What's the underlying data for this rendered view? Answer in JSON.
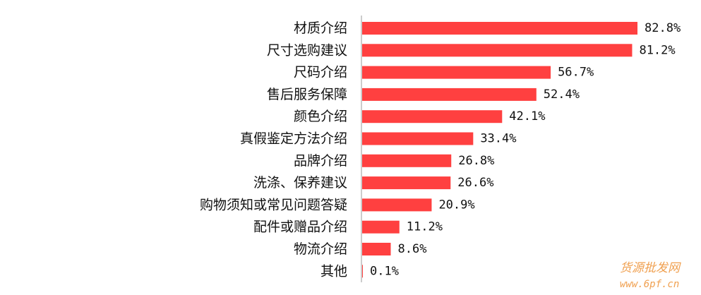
{
  "chart_data": {
    "type": "bar",
    "orientation": "horizontal",
    "categories": [
      "材质介绍",
      "尺寸选购建议",
      "尺码介绍",
      "售后服务保障",
      "颜色介绍",
      "真假鉴定方法介绍",
      "品牌介绍",
      "洗涤、保养建议",
      "购物须知或常见问题答疑",
      "配件或赠品介绍",
      "物流介绍",
      "其他"
    ],
    "values": [
      82.8,
      81.2,
      56.7,
      52.4,
      42.1,
      33.4,
      26.8,
      26.6,
      20.9,
      11.2,
      8.6,
      0.1
    ],
    "value_labels": [
      "82.8%",
      "81.2%",
      "56.7%",
      "52.4%",
      "42.1%",
      "33.4%",
      "26.8%",
      "26.6%",
      "20.9%",
      "11.2%",
      "8.6%",
      "0.1%"
    ],
    "unit": "%",
    "xlim": [
      0,
      100
    ],
    "grid": false,
    "legend": "none",
    "bar_color": "#ff4040",
    "axis_color": "#9a9a9a"
  },
  "watermark": {
    "line1": "货源批发网",
    "line2": "www.6pf.cn",
    "color": "#f0a050"
  }
}
